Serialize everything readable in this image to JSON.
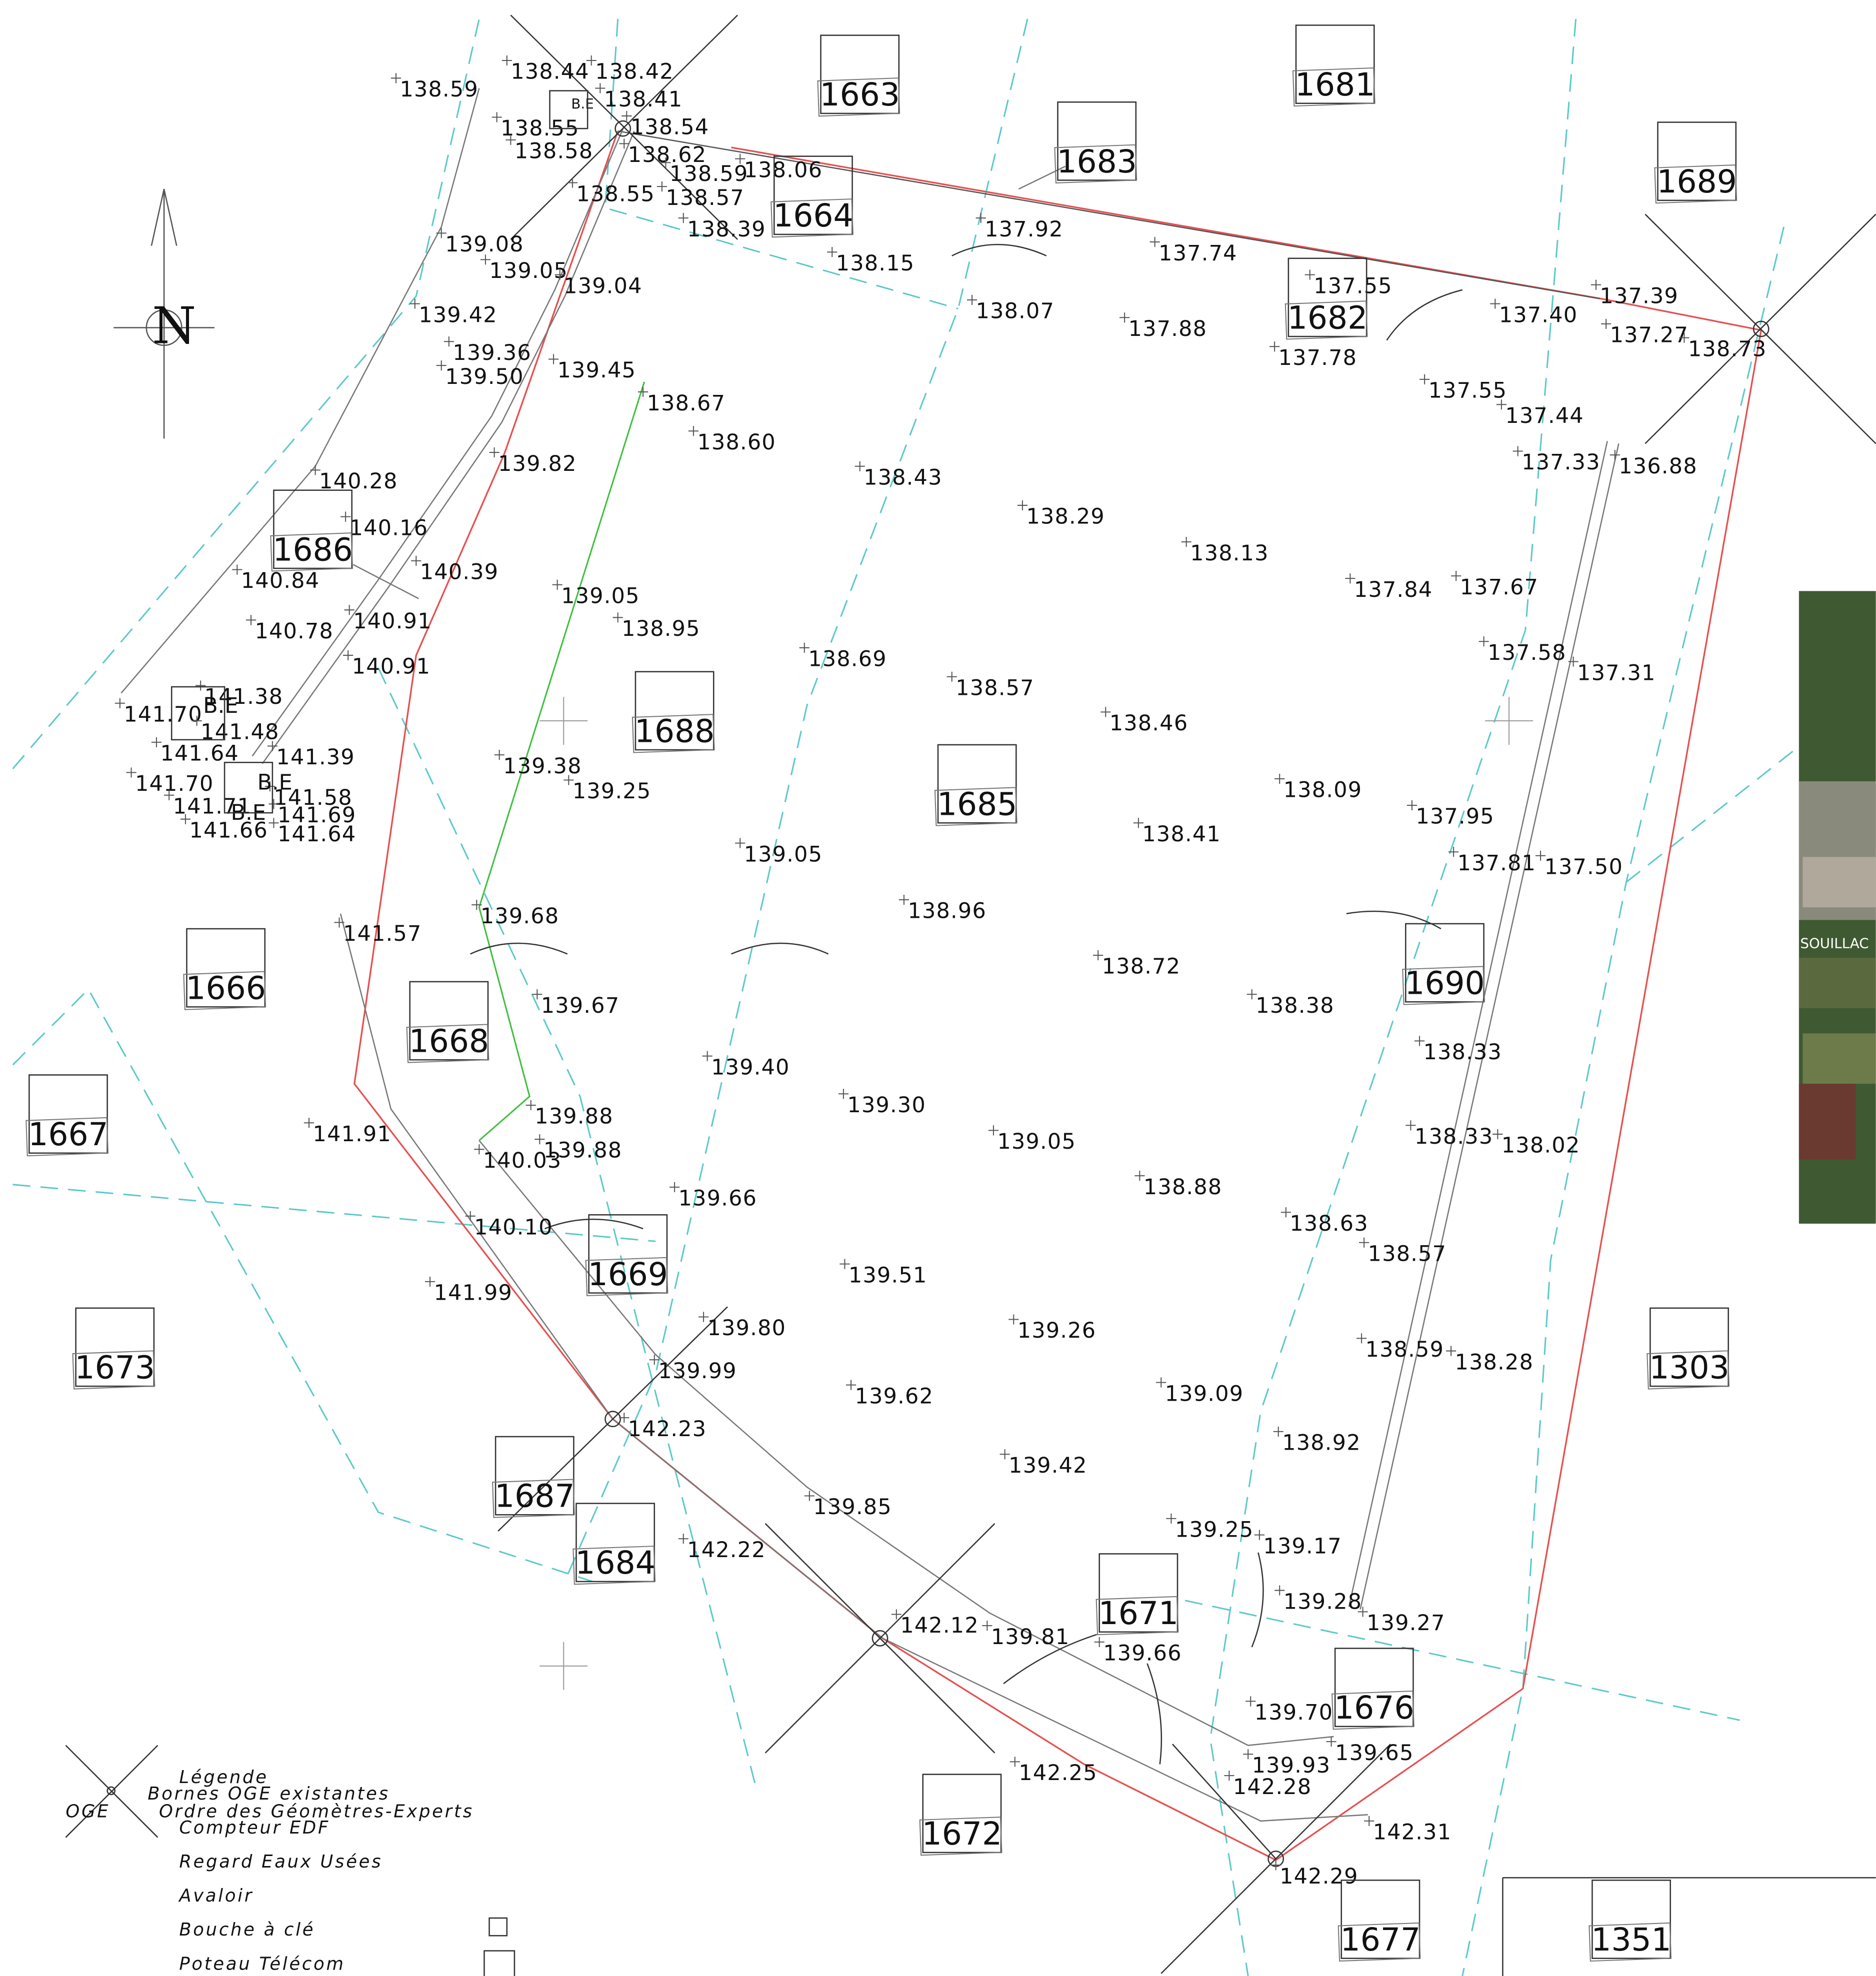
{
  "north": "N",
  "parcels": [
    "1663",
    "1681",
    "1683",
    "1689",
    "1664",
    "1682",
    "1686",
    "1688",
    "1685",
    "1666",
    "1690",
    "1668",
    "1667",
    "1669",
    "1673",
    "1303",
    "1687",
    "1684",
    "1671",
    "1676",
    "1672",
    "1677",
    "1351"
  ],
  "elevations": [
    "138.59",
    "138.44",
    "138.42",
    "138.41",
    "138.55",
    "138.54",
    "138.58",
    "138.62",
    "138.59",
    "138.06",
    "138.55",
    "138.57",
    "138.39",
    "139.08",
    "137.92",
    "137.74",
    "138.15",
    "139.05",
    "139.04",
    "137.55",
    "137.39",
    "138.07",
    "137.40",
    "139.42",
    "137.88",
    "137.27",
    "138.73",
    "139.36",
    "137.78",
    "139.45",
    "139.50",
    "137.55",
    "138.67",
    "137.44",
    "138.60",
    "137.33",
    "136.88",
    "139.82",
    "138.43",
    "140.28",
    "138.29",
    "140.16",
    "138.13",
    "140.39",
    "140.84",
    "137.67",
    "137.84",
    "139.05",
    "140.91",
    "138.95",
    "140.78",
    "137.58",
    "138.69",
    "140.91",
    "137.31",
    "138.57",
    "141.38",
    "141.70",
    "138.46",
    "141.48",
    "141.39",
    "141.64",
    "139.38",
    "138.09",
    "141.70",
    "139.25",
    "141.58",
    "141.71",
    "141.69",
    "137.95",
    "141.66",
    "141.64",
    "138.41",
    "139.05",
    "137.81",
    "137.50",
    "138.96",
    "139.68",
    "141.57",
    "138.72",
    "139.67",
    "138.38",
    "138.33",
    "139.40",
    "139.30",
    "139.88",
    "141.91",
    "138.33",
    "139.05",
    "138.02",
    "139.88",
    "140.03",
    "138.88",
    "139.66",
    "138.63",
    "140.10",
    "138.57",
    "139.51",
    "141.99",
    "139.80",
    "139.26",
    "138.59",
    "138.28",
    "139.99",
    "139.09",
    "139.62",
    "142.23",
    "138.92",
    "139.42",
    "139.85",
    "139.25",
    "139.17",
    "142.22",
    "139.28",
    "139.27",
    "142.12",
    "139.81",
    "139.66",
    "139.70",
    "139.65",
    "139.93",
    "142.25",
    "142.28",
    "142.31",
    "142.29"
  ],
  "labels": {
    "be": [
      "B.E",
      "B.E",
      "B.E",
      "B.E"
    ],
    "place": "SOUILLAC"
  },
  "legend": {
    "title": "Légende",
    "oge": "OGE",
    "items": [
      "Bornes OGE existantes",
      "Ordre des Géomètres-Experts",
      "Compteur EDF",
      "Regard Eaux Usées",
      "Avaloir",
      "Bouche à clé",
      "Poteau Télécom"
    ]
  }
}
